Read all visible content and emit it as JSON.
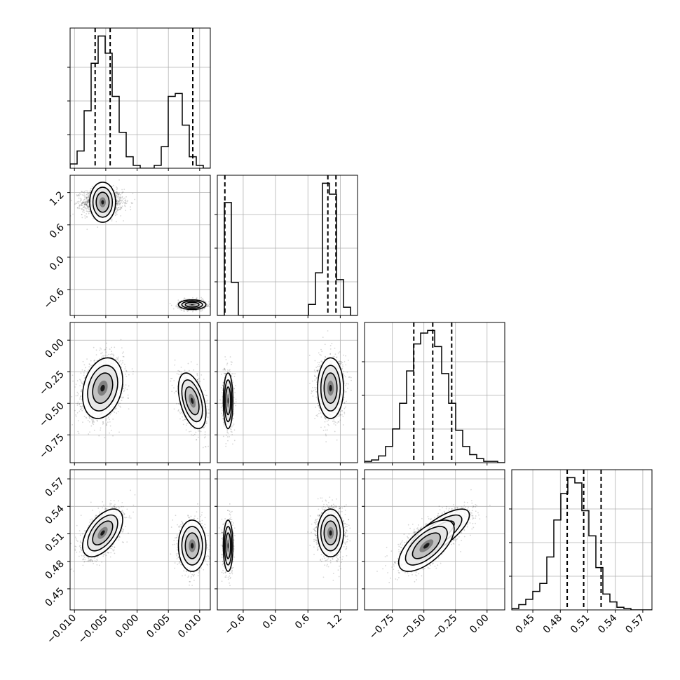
{
  "chart_data": {
    "type": "corner",
    "n_params": 4,
    "grid": true,
    "parameters": [
      {
        "index": 0,
        "range": [
          -0.0107,
          0.0117
        ],
        "ticks": [
          -0.01,
          -0.005,
          0.0,
          0.005,
          0.01
        ],
        "tick_labels": [
          "−0.010",
          "−0.005",
          "0.000",
          "0.005",
          "0.010"
        ],
        "quantiles": [
          -0.0067,
          -0.0043,
          0.0089
        ],
        "hist": {
          "edges_start": -0.0107,
          "bin_width": 0.00112,
          "counts": [
            3,
            12,
            40,
            73,
            92,
            80,
            50,
            25,
            8,
            2,
            0,
            0,
            2,
            15,
            50,
            52,
            30,
            8,
            2,
            0
          ]
        }
      },
      {
        "index": 1,
        "range": [
          -1.08,
          1.52
        ],
        "ticks": [
          -0.6,
          0.0,
          0.6,
          1.2
        ],
        "tick_labels": [
          "−0.6",
          "0.0",
          "0.6",
          "1.2"
        ],
        "quantiles": [
          -0.94,
          0.97,
          1.12
        ],
        "hist": {
          "edges_start": -1.08,
          "bin_width": 0.13,
          "counts": [
            0,
            82,
            24,
            0,
            0,
            0,
            0,
            0,
            0,
            0,
            0,
            0,
            0,
            8,
            31,
            96,
            88,
            26,
            6,
            0
          ]
        }
      },
      {
        "index": 2,
        "range": [
          -0.97,
          0.14
        ],
        "ticks": [
          -0.75,
          -0.5,
          -0.25,
          0.0
        ],
        "tick_labels": [
          "−0.75",
          "−0.50",
          "−0.25",
          "0.00"
        ],
        "quantiles": [
          -0.58,
          -0.43,
          -0.28
        ],
        "hist": {
          "edges_start": -0.97,
          "bin_width": 0.0555,
          "counts": [
            1,
            2,
            5,
            12,
            25,
            44,
            68,
            88,
            96,
            98,
            86,
            66,
            44,
            24,
            12,
            6,
            3,
            1,
            1,
            0
          ]
        }
      },
      {
        "index": 3,
        "range": [
          0.427,
          0.58
        ],
        "ticks": [
          0.45,
          0.48,
          0.51,
          0.54,
          0.57
        ],
        "tick_labels": [
          "0.45",
          "0.48",
          "0.51",
          "0.54",
          "0.57"
        ],
        "quantiles": [
          0.4875,
          0.5055,
          0.5245
        ],
        "hist": {
          "edges_start": 0.427,
          "bin_width": 0.00765,
          "counts": [
            1,
            4,
            8,
            14,
            20,
            40,
            68,
            88,
            100,
            96,
            75,
            56,
            32,
            12,
            6,
            2,
            1,
            0,
            0,
            0
          ]
        }
      }
    ],
    "clusters": [
      {
        "mean": [
          -0.0055,
          1.02,
          -0.38,
          0.511
        ],
        "sd": [
          0.0016,
          0.12,
          0.12,
          0.013
        ],
        "corr": {
          "0-2": 0.25,
          "0-3": 0.55,
          "1-2": 0.0,
          "1-3": 0.0,
          "2-3": 0.75
        },
        "weight": 0.64
      },
      {
        "mean": [
          0.0088,
          -0.88,
          -0.48,
          0.497
        ],
        "sd": [
          0.0011,
          0.045,
          0.11,
          0.014
        ],
        "corr": {
          "0-2": -0.45,
          "0-3": 0.0,
          "1-2": 0.0,
          "1-3": 0.0,
          "2-3": 0.65
        },
        "weight": 0.36
      }
    ]
  }
}
